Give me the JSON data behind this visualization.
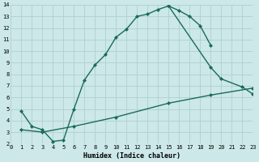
{
  "bg_color": "#cce8e8",
  "grid_color": "#b0d0d0",
  "line_color": "#1a6b5a",
  "marker_style": "D",
  "marker_size": 2.0,
  "line_width": 1.0,
  "xlabel": "Humidex (Indice chaleur)",
  "xlim": [
    0,
    23
  ],
  "ylim": [
    2,
    14
  ],
  "xticks": [
    0,
    1,
    2,
    3,
    4,
    5,
    6,
    7,
    8,
    9,
    10,
    11,
    12,
    13,
    14,
    15,
    16,
    17,
    18,
    19,
    20,
    21,
    22,
    23
  ],
  "yticks": [
    2,
    3,
    4,
    5,
    6,
    7,
    8,
    9,
    10,
    11,
    12,
    13,
    14
  ],
  "curve1_x": [
    1,
    2,
    3,
    4,
    5,
    6,
    7,
    8,
    9,
    10,
    11,
    12,
    13,
    14,
    15,
    16,
    17,
    18,
    19
  ],
  "curve1_y": [
    4.8,
    3.5,
    3.2,
    2.2,
    2.3,
    5.0,
    7.5,
    8.8,
    9.7,
    11.2,
    11.9,
    13.0,
    13.2,
    13.6,
    13.9,
    13.5,
    13.0,
    12.2,
    10.5
  ],
  "curve2_x": [
    15,
    19,
    20,
    22,
    23
  ],
  "curve2_y": [
    13.9,
    8.6,
    7.6,
    6.9,
    6.3
  ],
  "curve3_x": [
    1,
    3,
    6,
    10,
    15,
    19,
    23
  ],
  "curve3_y": [
    3.2,
    3.0,
    3.5,
    4.3,
    5.5,
    6.2,
    6.8
  ]
}
